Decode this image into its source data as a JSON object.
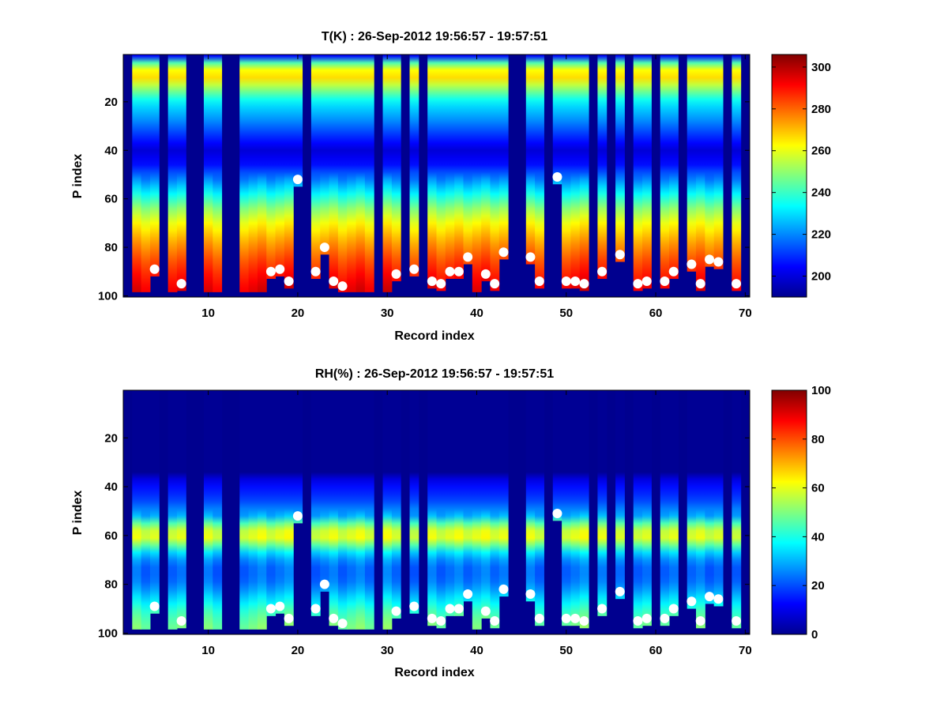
{
  "charts": [
    {
      "type": "heatmap",
      "title": "T(K) : 26-Sep-2012 19:56:57 - 19:57:51",
      "xlabel": "Record index",
      "ylabel": "P index",
      "xlim": [
        0.5,
        70.5
      ],
      "ylim": [
        0.5,
        100.5
      ],
      "y_reversed": true,
      "x_ticks": [
        10,
        20,
        30,
        40,
        50,
        60,
        70
      ],
      "y_ticks": [
        20,
        40,
        60,
        80,
        100
      ],
      "colorbar": {
        "min": 190,
        "max": 306,
        "ticks": [
          200,
          220,
          240,
          260,
          280,
          300
        ],
        "colormap": "jet"
      },
      "background_color": "#00008f",
      "missing_records": [
        1,
        5,
        8,
        9,
        12,
        13,
        21,
        29,
        32,
        34,
        44,
        45,
        48,
        53,
        55,
        57,
        60,
        63,
        68,
        70
      ],
      "surface_markers": [
        {
          "x": 4,
          "y": 89
        },
        {
          "x": 7,
          "y": 95
        },
        {
          "x": 17,
          "y": 90
        },
        {
          "x": 18,
          "y": 89
        },
        {
          "x": 19,
          "y": 94
        },
        {
          "x": 20,
          "y": 52
        },
        {
          "x": 22,
          "y": 90
        },
        {
          "x": 23,
          "y": 80
        },
        {
          "x": 24,
          "y": 94
        },
        {
          "x": 25,
          "y": 96
        },
        {
          "x": 31,
          "y": 91
        },
        {
          "x": 33,
          "y": 89
        },
        {
          "x": 35,
          "y": 94
        },
        {
          "x": 36,
          "y": 95
        },
        {
          "x": 37,
          "y": 90
        },
        {
          "x": 38,
          "y": 90
        },
        {
          "x": 39,
          "y": 84
        },
        {
          "x": 41,
          "y": 91
        },
        {
          "x": 42,
          "y": 95
        },
        {
          "x": 43,
          "y": 82
        },
        {
          "x": 46,
          "y": 84
        },
        {
          "x": 47,
          "y": 94
        },
        {
          "x": 49,
          "y": 51
        },
        {
          "x": 50,
          "y": 94
        },
        {
          "x": 51,
          "y": 94
        },
        {
          "x": 52,
          "y": 95
        },
        {
          "x": 54,
          "y": 90
        },
        {
          "x": 56,
          "y": 83
        },
        {
          "x": 58,
          "y": 95
        },
        {
          "x": 59,
          "y": 94
        },
        {
          "x": 61,
          "y": 94
        },
        {
          "x": 62,
          "y": 90
        },
        {
          "x": 64,
          "y": 87
        },
        {
          "x": 65,
          "y": 95
        },
        {
          "x": 66,
          "y": 85
        },
        {
          "x": 67,
          "y": 86
        },
        {
          "x": 69,
          "y": 95
        }
      ],
      "profile_levels": [
        {
          "p": 1,
          "v": 205
        },
        {
          "p": 5,
          "v": 255
        },
        {
          "p": 9,
          "v": 270
        },
        {
          "p": 14,
          "v": 252
        },
        {
          "p": 20,
          "v": 232
        },
        {
          "p": 28,
          "v": 220
        },
        {
          "p": 35,
          "v": 208
        },
        {
          "p": 40,
          "v": 200
        },
        {
          "p": 46,
          "v": 206
        },
        {
          "p": 52,
          "v": 220
        },
        {
          "p": 58,
          "v": 235
        },
        {
          "p": 64,
          "v": 250
        },
        {
          "p": 70,
          "v": 262
        },
        {
          "p": 78,
          "v": 274
        },
        {
          "p": 86,
          "v": 284
        },
        {
          "p": 92,
          "v": 290
        },
        {
          "p": 98,
          "v": 295
        }
      ]
    },
    {
      "type": "heatmap",
      "title": "RH(%) : 26-Sep-2012 19:56:57 - 19:57:51",
      "xlabel": "Record index",
      "ylabel": "P index",
      "xlim": [
        0.5,
        70.5
      ],
      "ylim": [
        0.5,
        100.5
      ],
      "y_reversed": true,
      "x_ticks": [
        10,
        20,
        30,
        40,
        50,
        60,
        70
      ],
      "y_ticks": [
        20,
        40,
        60,
        80,
        100
      ],
      "colorbar": {
        "min": 0,
        "max": 100,
        "ticks": [
          0,
          20,
          40,
          60,
          80,
          100
        ],
        "colormap": "jet"
      },
      "background_color": "#00008f",
      "missing_records": [
        1,
        5,
        8,
        9,
        12,
        13,
        21,
        29,
        32,
        34,
        44,
        45,
        48,
        53,
        55,
        57,
        60,
        63,
        68,
        70
      ],
      "surface_markers": [
        {
          "x": 4,
          "y": 89
        },
        {
          "x": 7,
          "y": 95
        },
        {
          "x": 17,
          "y": 90
        },
        {
          "x": 18,
          "y": 89
        },
        {
          "x": 19,
          "y": 94
        },
        {
          "x": 20,
          "y": 52
        },
        {
          "x": 22,
          "y": 90
        },
        {
          "x": 23,
          "y": 80
        },
        {
          "x": 24,
          "y": 94
        },
        {
          "x": 25,
          "y": 96
        },
        {
          "x": 31,
          "y": 91
        },
        {
          "x": 33,
          "y": 89
        },
        {
          "x": 35,
          "y": 94
        },
        {
          "x": 36,
          "y": 95
        },
        {
          "x": 37,
          "y": 90
        },
        {
          "x": 38,
          "y": 90
        },
        {
          "x": 39,
          "y": 84
        },
        {
          "x": 41,
          "y": 91
        },
        {
          "x": 42,
          "y": 95
        },
        {
          "x": 43,
          "y": 82
        },
        {
          "x": 46,
          "y": 84
        },
        {
          "x": 47,
          "y": 94
        },
        {
          "x": 49,
          "y": 51
        },
        {
          "x": 50,
          "y": 94
        },
        {
          "x": 51,
          "y": 94
        },
        {
          "x": 52,
          "y": 95
        },
        {
          "x": 54,
          "y": 90
        },
        {
          "x": 56,
          "y": 83
        },
        {
          "x": 58,
          "y": 95
        },
        {
          "x": 59,
          "y": 94
        },
        {
          "x": 61,
          "y": 94
        },
        {
          "x": 62,
          "y": 90
        },
        {
          "x": 64,
          "y": 87
        },
        {
          "x": 65,
          "y": 95
        },
        {
          "x": 66,
          "y": 85
        },
        {
          "x": 67,
          "y": 86
        },
        {
          "x": 69,
          "y": 95
        }
      ],
      "profile_levels": [
        {
          "p": 1,
          "v": 2
        },
        {
          "p": 34,
          "v": 2
        },
        {
          "p": 38,
          "v": 12
        },
        {
          "p": 45,
          "v": 18
        },
        {
          "p": 52,
          "v": 30
        },
        {
          "p": 56,
          "v": 52
        },
        {
          "p": 60,
          "v": 64
        },
        {
          "p": 64,
          "v": 48
        },
        {
          "p": 68,
          "v": 30
        },
        {
          "p": 74,
          "v": 22
        },
        {
          "p": 80,
          "v": 25
        },
        {
          "p": 86,
          "v": 35
        },
        {
          "p": 92,
          "v": 45
        },
        {
          "p": 98,
          "v": 50
        }
      ]
    }
  ]
}
